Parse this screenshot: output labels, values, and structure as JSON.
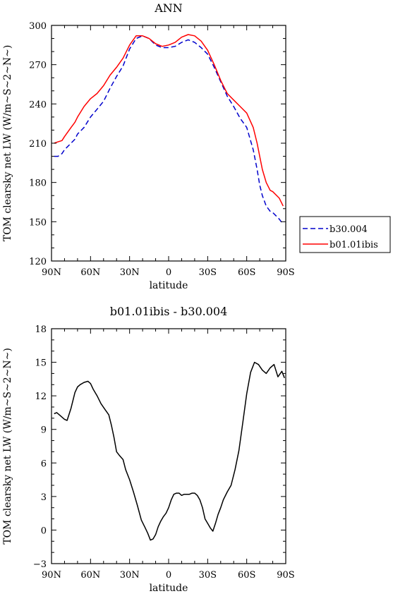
{
  "chart_data": [
    {
      "type": "line",
      "title": "ANN",
      "xlabel": "latitude",
      "ylabel": "TOM clearsky net LW (W/m~S~2~N~)",
      "xlim": [
        90,
        -90
      ],
      "ylim": [
        120,
        300
      ],
      "xticks": [
        90,
        60,
        30,
        0,
        -30,
        -60,
        -90
      ],
      "xtick_labels": [
        "90N",
        "60N",
        "30N",
        "0",
        "30S",
        "60S",
        "90S"
      ],
      "yticks": [
        120,
        150,
        180,
        210,
        240,
        270,
        300
      ],
      "ytick_labels": [
        "120",
        "150",
        "180",
        "210",
        "240",
        "270",
        "300"
      ],
      "legend": {
        "placement": "right"
      },
      "series": [
        {
          "name": "b30.004",
          "color": "#0000cc",
          "dash": true,
          "x": [
            88,
            85,
            82,
            80,
            75,
            72,
            70,
            65,
            60,
            55,
            50,
            45,
            40,
            35,
            30,
            25,
            20,
            15,
            10,
            5,
            0,
            -5,
            -10,
            -15,
            -20,
            -25,
            -30,
            -35,
            -40,
            -45,
            -50,
            -55,
            -60,
            -65,
            -68,
            -70,
            -72,
            -75,
            -78,
            -80,
            -85,
            -88
          ],
          "y": [
            200,
            200,
            202,
            205,
            210,
            213,
            217,
            222,
            230,
            236,
            242,
            252,
            261,
            269,
            282,
            290,
            292,
            290,
            285,
            283,
            283,
            284,
            287,
            289,
            287,
            283,
            278,
            268,
            257,
            246,
            238,
            229,
            222,
            205,
            190,
            178,
            170,
            162,
            158,
            157,
            152,
            148
          ]
        },
        {
          "name": "b01.01ibis",
          "color": "#ff0000",
          "dash": false,
          "x": [
            88,
            85,
            82,
            80,
            75,
            72,
            70,
            65,
            60,
            55,
            50,
            45,
            40,
            35,
            30,
            25,
            20,
            15,
            10,
            5,
            0,
            -5,
            -10,
            -15,
            -20,
            -25,
            -30,
            -35,
            -40,
            -45,
            -50,
            -55,
            -60,
            -65,
            -68,
            -70,
            -72,
            -75,
            -78,
            -80,
            -85,
            -88
          ],
          "y": [
            210,
            211,
            212,
            215,
            222,
            226,
            230,
            238,
            244,
            248,
            254,
            262,
            268,
            275,
            285,
            292,
            292,
            290,
            286,
            284,
            285,
            287,
            291,
            293,
            292,
            288,
            281,
            270,
            258,
            248,
            243,
            238,
            233,
            222,
            210,
            200,
            190,
            180,
            174,
            173,
            168,
            162
          ]
        }
      ]
    },
    {
      "type": "line",
      "title": "b01.01ibis - b30.004",
      "xlabel": "latitude",
      "ylabel": "TOM clearsky net LW (W/m~S~2~N~)",
      "xlim": [
        90,
        -90
      ],
      "ylim": [
        -3,
        18
      ],
      "xticks": [
        90,
        60,
        30,
        0,
        -30,
        -60,
        -90
      ],
      "xtick_labels": [
        "90N",
        "60N",
        "30N",
        "0",
        "30S",
        "60S",
        "90S"
      ],
      "yticks": [
        -3,
        0,
        3,
        6,
        9,
        12,
        15,
        18
      ],
      "ytick_labels": [
        "−3",
        "0",
        "3",
        "6",
        "9",
        "12",
        "15",
        "18"
      ],
      "series": [
        {
          "color": "#000000",
          "dash": false,
          "x": [
            88,
            86,
            84,
            82,
            80,
            78,
            75,
            72,
            70,
            68,
            65,
            62,
            60,
            58,
            55,
            52,
            49,
            46,
            44,
            42,
            40,
            38,
            35,
            33,
            30,
            27,
            24,
            21,
            18,
            16,
            14,
            12,
            10,
            8,
            6,
            4,
            2,
            0,
            -2,
            -4,
            -6,
            -8,
            -10,
            -12,
            -14,
            -16,
            -18,
            -20,
            -22,
            -24,
            -26,
            -28,
            -30,
            -32,
            -34,
            -36,
            -38,
            -40,
            -42,
            -45,
            -48,
            -51,
            -54,
            -57,
            -60,
            -63,
            -66,
            -69,
            -72,
            -75,
            -78,
            -81,
            -84,
            -87,
            -89
          ],
          "y": [
            10.4,
            10.5,
            10.3,
            10.1,
            9.9,
            9.8,
            10.9,
            12.3,
            12.8,
            13.0,
            13.2,
            13.3,
            13.1,
            12.6,
            12.0,
            11.3,
            10.8,
            10.3,
            9.4,
            8.3,
            7.0,
            6.7,
            6.3,
            5.4,
            4.5,
            3.4,
            2.2,
            0.9,
            0.2,
            -0.3,
            -0.9,
            -0.8,
            -0.4,
            0.3,
            0.8,
            1.2,
            1.5,
            2.0,
            2.7,
            3.2,
            3.3,
            3.3,
            3.1,
            3.2,
            3.2,
            3.2,
            3.3,
            3.3,
            3.1,
            2.7,
            2.0,
            1.0,
            0.6,
            0.2,
            -0.1,
            0.6,
            1.4,
            2.0,
            2.7,
            3.4,
            4.0,
            5.4,
            7.1,
            9.6,
            12.2,
            14.1,
            15.0,
            14.8,
            14.3,
            14.0,
            14.5,
            14.8,
            13.7,
            14.2,
            13.6
          ]
        }
      ]
    }
  ]
}
